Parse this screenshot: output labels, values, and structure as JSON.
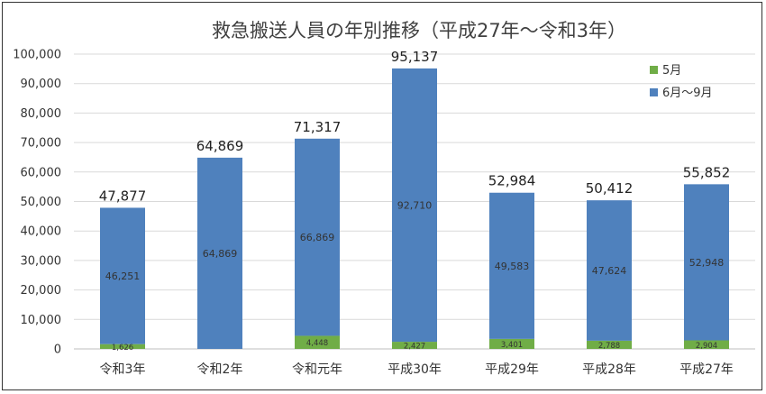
{
  "chart_data": {
    "type": "bar",
    "stacked": true,
    "title": "救急搬送人員の年別推移（平成27年～令和3年）",
    "categories": [
      "令和3年",
      "令和2年",
      "令和元年",
      "平成30年",
      "平成29年",
      "平成28年",
      "平成27年"
    ],
    "series": [
      {
        "name": "5月",
        "color": "#70ad47",
        "values": [
          1626,
          0,
          4448,
          2427,
          3401,
          2788,
          2904
        ],
        "labels": [
          "1,626",
          "",
          "4,448",
          "2,427",
          "3,401",
          "2,788",
          "2,904"
        ]
      },
      {
        "name": "6月～9月",
        "color": "#4f81bd",
        "values": [
          46251,
          64869,
          66869,
          92710,
          49583,
          47624,
          52948
        ],
        "labels": [
          "46,251",
          "64,869",
          "66,869",
          "92,710",
          "49,583",
          "47,624",
          "52,948"
        ]
      }
    ],
    "totals": [
      "47,877",
      "64,869",
      "71,317",
      "95,137",
      "52,984",
      "50,412",
      "55,852"
    ],
    "total_values": [
      47877,
      64869,
      71317,
      95137,
      52984,
      50412,
      55852
    ],
    "ylim": [
      0,
      100000
    ],
    "yticks": [
      "0",
      "10,000",
      "20,000",
      "30,000",
      "40,000",
      "50,000",
      "60,000",
      "70,000",
      "80,000",
      "90,000",
      "100,000"
    ],
    "ytick_values": [
      0,
      10000,
      20000,
      30000,
      40000,
      50000,
      60000,
      70000,
      80000,
      90000,
      100000
    ],
    "grid": true,
    "legend_position": "top-right"
  }
}
